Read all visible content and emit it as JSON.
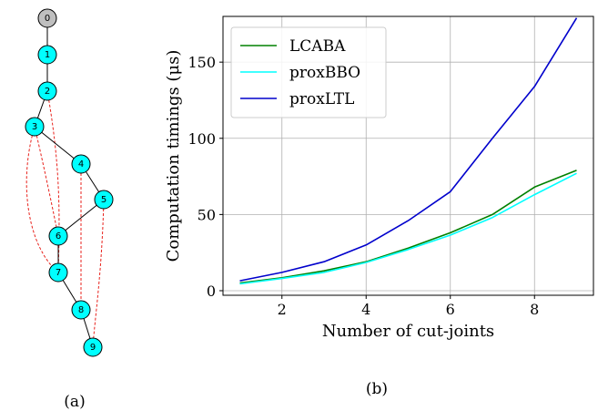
{
  "captions": {
    "a": "(a)",
    "b": "(b)"
  },
  "graph": {
    "node_fill": "#00ffff",
    "root_fill": "#bfbfbf",
    "edge_color": "#000000",
    "dashed_color": "#e8221c",
    "nodes": [
      "0",
      "1",
      "2",
      "3",
      "4",
      "5",
      "6",
      "7",
      "8",
      "9"
    ],
    "edges": [
      [
        "0",
        "1"
      ],
      [
        "1",
        "2"
      ],
      [
        "2",
        "3"
      ],
      [
        "3",
        "4"
      ],
      [
        "4",
        "5"
      ],
      [
        "5",
        "6"
      ],
      [
        "6",
        "7"
      ],
      [
        "7",
        "8"
      ],
      [
        "8",
        "9"
      ]
    ],
    "dashed_edges": [
      [
        "2",
        "7"
      ],
      [
        "3",
        "6"
      ],
      [
        "3",
        "7"
      ],
      [
        "4",
        "8"
      ],
      [
        "5",
        "9"
      ]
    ]
  },
  "chart_data": {
    "type": "line",
    "title": "",
    "xlabel": "Number of cut-joints",
    "ylabel": "Computation timings (μs)",
    "xlim": [
      0.6,
      9.4
    ],
    "ylim": [
      -3,
      180
    ],
    "xticks": [
      2,
      4,
      6,
      8
    ],
    "yticks": [
      0,
      50,
      100,
      150
    ],
    "grid": true,
    "legend_position": "top-left",
    "x": [
      1,
      2,
      3,
      4,
      5,
      6,
      7,
      8,
      9
    ],
    "series": [
      {
        "name": "LCABA",
        "color": "#008000",
        "values": [
          5,
          8.5,
          13,
          19,
          28,
          38,
          50,
          68,
          79
        ]
      },
      {
        "name": "proxBBO",
        "color": "#00ffff",
        "values": [
          4.5,
          8,
          12,
          18.5,
          27,
          36.5,
          48,
          63,
          77
        ]
      },
      {
        "name": "proxLTL",
        "color": "#0000cc",
        "values": [
          6.5,
          12,
          19,
          30,
          46,
          65,
          100,
          134,
          179
        ]
      }
    ]
  }
}
